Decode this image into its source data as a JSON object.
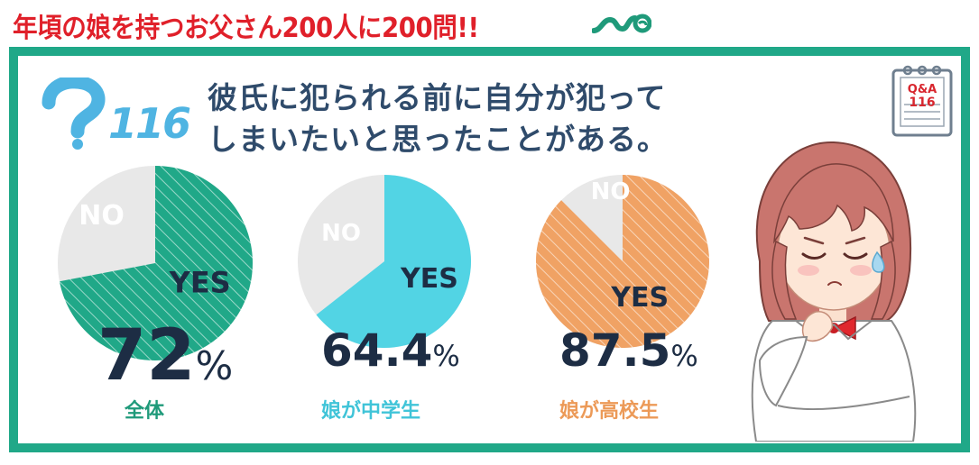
{
  "header": {
    "title": "年頃の娘を持つお父さん200人に200問!!"
  },
  "question": {
    "number": "116",
    "line1": "彼氏に犯られる前に自分が犯って",
    "line2": "しまいたいと思ったことがある。"
  },
  "badge": {
    "line1": "Q&A",
    "line2": "116"
  },
  "chart_data": {
    "type": "pie",
    "title": "彼氏に犯られる前に自分が犯ってしまいたいと思ったことがある。",
    "categories": [
      "YES",
      "NO"
    ],
    "series": [
      {
        "name": "全体",
        "values": [
          72,
          28
        ],
        "percent_label": "72",
        "color": "#20a888"
      },
      {
        "name": "娘が中学生",
        "values": [
          64.4,
          35.6
        ],
        "percent_label": "64.4",
        "color": "#52d4e4"
      },
      {
        "name": "娘が高校生",
        "values": [
          87.5,
          12.5
        ],
        "percent_label": "87.5",
        "color": "#f0a264"
      }
    ],
    "no_color": "#e8e8e8",
    "percent_unit": "%"
  }
}
